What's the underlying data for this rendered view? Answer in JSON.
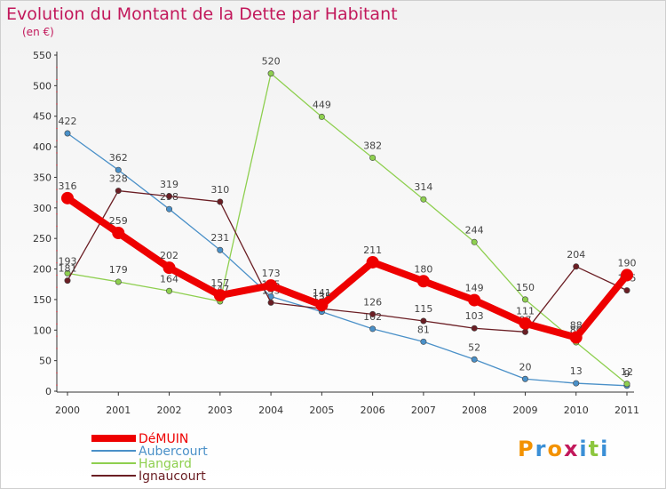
{
  "title": "Evolution du Montant de la Dette par Habitant",
  "unit": "(en €)",
  "brand": {
    "text": "Proxiti",
    "colors": [
      "#f39200",
      "#3a8fd6",
      "#f39200",
      "#c2185b",
      "#3a8fd6",
      "#8dc63f",
      "#3a8fd6"
    ]
  },
  "chart_data": {
    "type": "line",
    "x": [
      2000,
      2001,
      2002,
      2003,
      2004,
      2005,
      2006,
      2007,
      2008,
      2009,
      2010,
      2011
    ],
    "ylim": [
      0,
      550
    ],
    "yticks": [
      0,
      50,
      100,
      150,
      200,
      250,
      300,
      350,
      400,
      450,
      500,
      550
    ],
    "grid": false,
    "legend_position": "bottom-left",
    "series": [
      {
        "name": "Aubercourt",
        "color": "#4a90c8",
        "values": [
          422,
          362,
          298,
          231,
          155,
          130,
          102,
          81,
          52,
          20,
          13,
          9
        ]
      },
      {
        "name": "Hangard",
        "color": "#8ecf4f",
        "values": [
          193,
          179,
          164,
          147,
          520,
          449,
          382,
          314,
          244,
          150,
          80,
          12
        ]
      },
      {
        "name": "Ignaucourt",
        "color": "#6b1e24",
        "values": [
          181,
          328,
          319,
          310,
          145,
          135,
          126,
          115,
          103,
          97,
          204,
          165
        ]
      },
      {
        "name": "DéMUIN",
        "color": "#ee0000",
        "values": [
          316,
          259,
          202,
          157,
          173,
          141,
          211,
          180,
          149,
          111,
          88,
          190
        ]
      }
    ]
  }
}
